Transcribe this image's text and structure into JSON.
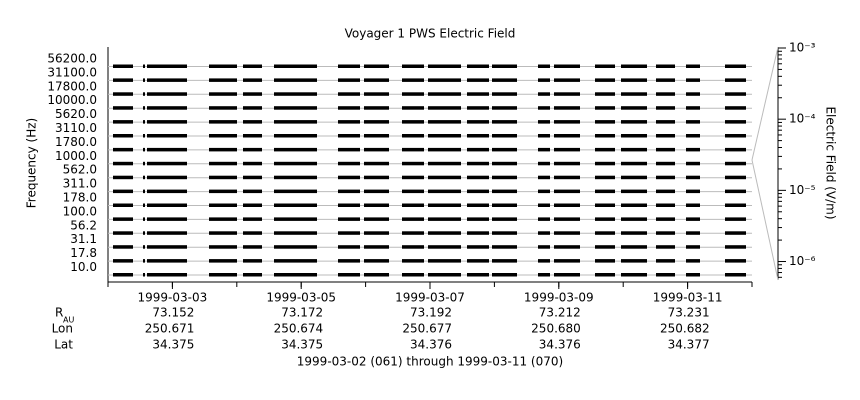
{
  "chart_data": {
    "type": "stacked-channel",
    "title": "Voyager 1 PWS Electric Field",
    "y_label": "Frequency (Hz)",
    "y2_label": "Electric Field (V/m)",
    "channels": [
      "56200.0",
      "31100.0",
      "17800.0",
      "10000.0",
      "5620.0",
      "3110.0",
      "1780.0",
      "1000.0",
      "562.0",
      "311.0",
      "178.0",
      "100.0",
      "56.2",
      "31.1",
      "17.8",
      "10.0"
    ],
    "xlim": [
      "1999-03-02",
      "1999-03-12"
    ],
    "xticks": [
      "1999-03-03",
      "1999-03-05",
      "1999-03-07",
      "1999-03-09",
      "1999-03-11"
    ],
    "y2lim": [
      5.5e-07,
      0.001
    ],
    "y2_log": true,
    "y2ticks": [
      {
        "value": 0.001,
        "label": "10⁻³"
      },
      {
        "value": 0.0001,
        "label": "10⁻⁴"
      },
      {
        "value": 1e-05,
        "label": "10⁻⁵"
      },
      {
        "value": 1e-06,
        "label": "10⁻⁶"
      }
    ],
    "color": "#000000",
    "ephemeris": [
      {
        "label": "R",
        "sub": "AU",
        "values": [
          "73.152",
          "73.172",
          "73.192",
          "73.212",
          "73.231"
        ]
      },
      {
        "label": "Lon",
        "values": [
          "250.671",
          "250.674",
          "250.677",
          "250.680",
          "250.682"
        ]
      },
      {
        "label": "Lat",
        "values": [
          "34.375",
          "34.375",
          "34.376",
          "34.376",
          "34.377"
        ]
      }
    ],
    "footer": "1999-03-02 (061) through 1999-03-11 (070)"
  }
}
